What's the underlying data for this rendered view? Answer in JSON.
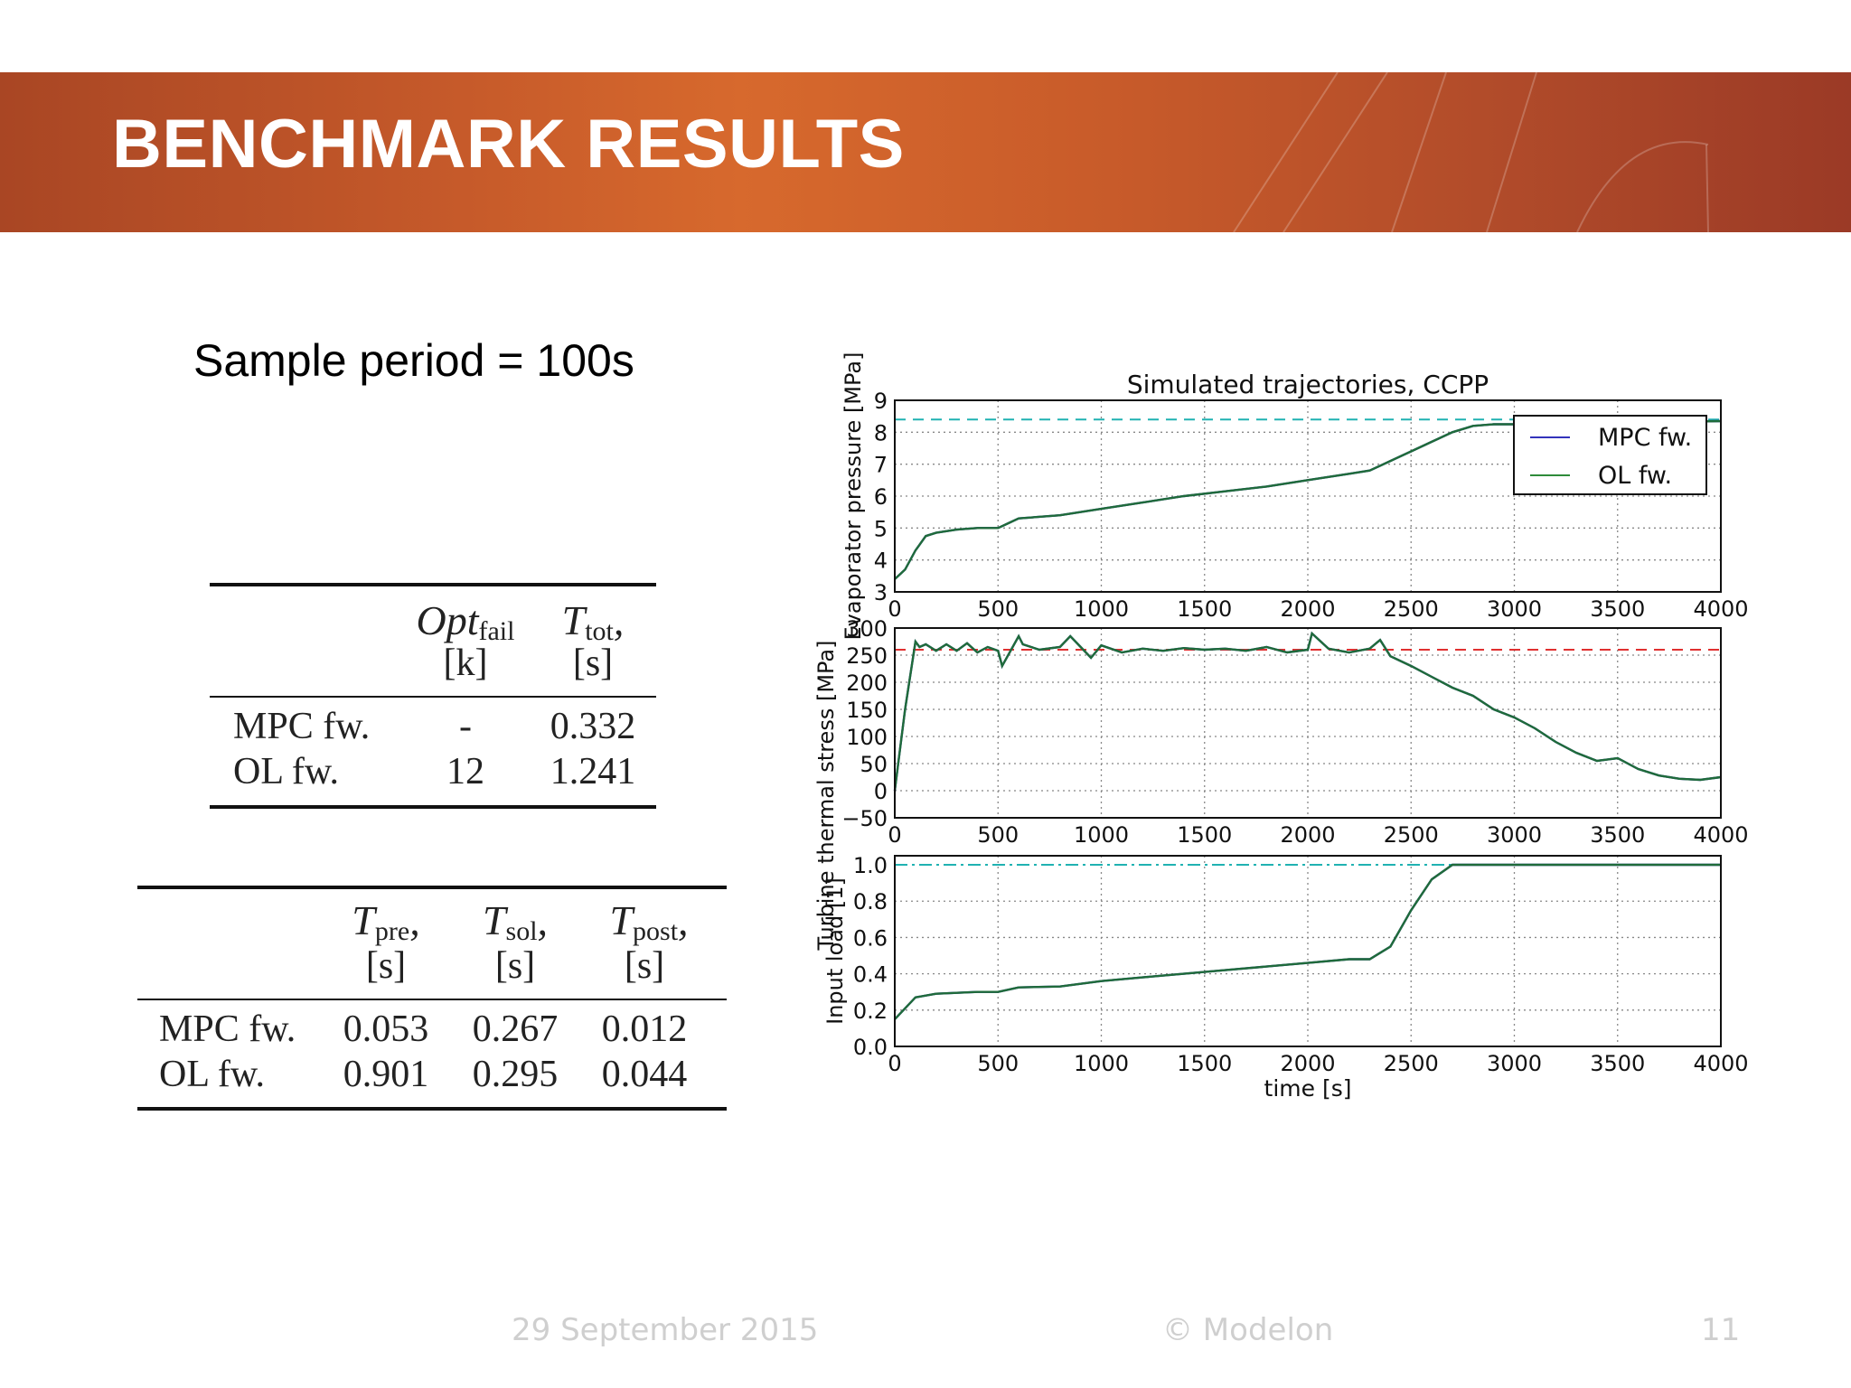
{
  "slide": {
    "title": "BENCHMARK RESULTS",
    "subtitle": "Sample period = 100s"
  },
  "table1": {
    "headers": [
      {
        "main": "Opt",
        "sub": "fail",
        "unit": "[k]"
      },
      {
        "main": "T",
        "sub": "tot",
        "unit": "[s]"
      }
    ],
    "rows": [
      {
        "label": "MPC fw.",
        "values": [
          "-",
          "0.332"
        ]
      },
      {
        "label": "OL fw.",
        "values": [
          "12",
          "1.241"
        ]
      }
    ]
  },
  "table2": {
    "headers": [
      {
        "main": "T",
        "sub": "pre",
        "unit": "[s]"
      },
      {
        "main": "T",
        "sub": "sol",
        "unit": "[s]"
      },
      {
        "main": "T",
        "sub": "post",
        "unit": "[s]"
      }
    ],
    "rows": [
      {
        "label": "MPC fw.",
        "values": [
          "0.053",
          "0.267",
          "0.012"
        ]
      },
      {
        "label": "OL fw.",
        "values": [
          "0.901",
          "0.295",
          "0.044"
        ]
      }
    ]
  },
  "footer": {
    "date": "29 September 2015",
    "copyright": "© Modelon",
    "page": "11"
  },
  "chart_data": {
    "type": "line",
    "title": "Simulated trajectories, CCPP",
    "xlabel": "time [s]",
    "xlim": [
      0,
      4000
    ],
    "xticks": [
      "0",
      "500",
      "1000",
      "1500",
      "2000",
      "2500",
      "3000",
      "3500",
      "4000"
    ],
    "legend": {
      "placement": "top-right",
      "entries": [
        {
          "name": "MPC fw.",
          "color": "#3333bb"
        },
        {
          "name": "OL fw.",
          "color": "#2e8b3a"
        }
      ]
    },
    "line_color": "#1f6b3a",
    "grid": true,
    "subplots": [
      {
        "ylabel": "Evaporator pressure [MPa]",
        "ylim": [
          3,
          9
        ],
        "yticks": [
          "3",
          "4",
          "5",
          "6",
          "7",
          "8",
          "9"
        ],
        "reference": {
          "value": 8.4,
          "color": "#20b2b2",
          "style": "dashed"
        },
        "series": [
          {
            "name": "MPC fw.",
            "x": [
              0,
              50,
              100,
              150,
              200,
              300,
              400,
              500,
              550,
              600,
              800,
              1000,
              1200,
              1400,
              1600,
              1800,
              2000,
              2100,
              2200,
              2300,
              2400,
              2500,
              2600,
              2700,
              2800,
              2900,
              3000,
              3500,
              4000
            ],
            "y": [
              3.4,
              3.7,
              4.3,
              4.75,
              4.85,
              4.95,
              5.0,
              5.0,
              5.15,
              5.3,
              5.4,
              5.6,
              5.8,
              6.0,
              6.15,
              6.3,
              6.5,
              6.6,
              6.7,
              6.8,
              7.1,
              7.4,
              7.7,
              8.0,
              8.2,
              8.25,
              8.25,
              8.3,
              8.35
            ]
          },
          {
            "name": "OL fw.",
            "x": [
              0,
              50,
              100,
              150,
              200,
              300,
              400,
              500,
              550,
              600,
              800,
              1000,
              1200,
              1400,
              1600,
              1800,
              2000,
              2100,
              2200,
              2300,
              2400,
              2500,
              2600,
              2700,
              2800,
              2900,
              3000,
              3500,
              4000
            ],
            "y": [
              3.4,
              3.7,
              4.3,
              4.75,
              4.85,
              4.95,
              5.0,
              5.0,
              5.15,
              5.3,
              5.4,
              5.6,
              5.8,
              6.0,
              6.15,
              6.3,
              6.5,
              6.6,
              6.7,
              6.8,
              7.1,
              7.4,
              7.7,
              8.0,
              8.2,
              8.25,
              8.25,
              8.3,
              8.35
            ]
          }
        ]
      },
      {
        "ylabel": "Turbine thermal stress [MPa]",
        "ylim": [
          -50,
          300
        ],
        "yticks": [
          "−50",
          "0",
          "50",
          "100",
          "150",
          "200",
          "250",
          "300"
        ],
        "reference": {
          "value": 260,
          "color": "#e03030",
          "style": "dashed"
        },
        "series": [
          {
            "name": "MPC fw.",
            "x": [
              0,
              50,
              100,
              120,
              150,
              200,
              250,
              300,
              350,
              400,
              450,
              500,
              520,
              600,
              620,
              700,
              800,
              850,
              900,
              950,
              1000,
              1100,
              1200,
              1300,
              1400,
              1500,
              1600,
              1700,
              1800,
              1900,
              2000,
              2020,
              2100,
              2200,
              2300,
              2350,
              2400,
              2500,
              2600,
              2700,
              2800,
              2900,
              3000,
              3100,
              3200,
              3300,
              3400,
              3500,
              3600,
              3700,
              3800,
              3900,
              4000
            ],
            "y": [
              0,
              150,
              275,
              265,
              270,
              258,
              270,
              258,
              272,
              255,
              265,
              258,
              230,
              285,
              270,
              260,
              265,
              285,
              265,
              245,
              268,
              255,
              262,
              258,
              263,
              260,
              262,
              258,
              265,
              255,
              260,
              290,
              262,
              255,
              262,
              278,
              248,
              230,
              210,
              190,
              175,
              150,
              135,
              115,
              90,
              70,
              55,
              60,
              40,
              28,
              22,
              20,
              25
            ]
          },
          {
            "name": "OL fw.",
            "x": [
              0,
              50,
              100,
              120,
              150,
              200,
              250,
              300,
              350,
              400,
              450,
              500,
              520,
              600,
              620,
              700,
              800,
              850,
              900,
              950,
              1000,
              1100,
              1200,
              1300,
              1400,
              1500,
              1600,
              1700,
              1800,
              1900,
              2000,
              2020,
              2100,
              2200,
              2300,
              2350,
              2400,
              2500,
              2600,
              2700,
              2800,
              2900,
              3000,
              3100,
              3200,
              3300,
              3400,
              3500,
              3600,
              3700,
              3800,
              3900,
              4000
            ],
            "y": [
              0,
              150,
              275,
              265,
              270,
              258,
              270,
              258,
              272,
              255,
              265,
              258,
              230,
              285,
              270,
              260,
              265,
              285,
              265,
              245,
              268,
              255,
              262,
              258,
              263,
              260,
              262,
              258,
              265,
              255,
              260,
              290,
              262,
              255,
              262,
              278,
              248,
              230,
              210,
              190,
              175,
              150,
              135,
              115,
              90,
              70,
              55,
              60,
              40,
              28,
              22,
              20,
              25
            ]
          }
        ]
      },
      {
        "ylabel": "Input load [1]",
        "ylim": [
          0.0,
          1.05
        ],
        "yticks": [
          "0.0",
          "0.2",
          "0.4",
          "0.6",
          "0.8",
          "1.0"
        ],
        "reference": {
          "value": 1.0,
          "color": "#20b2b2",
          "style": "dashdot"
        },
        "series": [
          {
            "name": "MPC fw.",
            "x": [
              0,
              100,
              200,
              300,
              400,
              500,
              600,
              800,
              1000,
              1200,
              1400,
              1600,
              1800,
              2000,
              2200,
              2300,
              2400,
              2500,
              2600,
              2700,
              2800,
              3000,
              3500,
              4000
            ],
            "y": [
              0.15,
              0.27,
              0.29,
              0.295,
              0.3,
              0.3,
              0.325,
              0.33,
              0.36,
              0.38,
              0.4,
              0.42,
              0.44,
              0.46,
              0.48,
              0.48,
              0.55,
              0.75,
              0.92,
              1.0,
              1.0,
              1.0,
              1.0,
              1.0
            ]
          },
          {
            "name": "OL fw.",
            "x": [
              0,
              100,
              200,
              300,
              400,
              500,
              600,
              800,
              1000,
              1200,
              1400,
              1600,
              1800,
              2000,
              2200,
              2300,
              2400,
              2500,
              2600,
              2700,
              2800,
              3000,
              3500,
              4000
            ],
            "y": [
              0.15,
              0.27,
              0.29,
              0.295,
              0.3,
              0.3,
              0.325,
              0.33,
              0.36,
              0.38,
              0.4,
              0.42,
              0.44,
              0.46,
              0.48,
              0.48,
              0.55,
              0.75,
              0.92,
              1.0,
              1.0,
              1.0,
              1.0,
              1.0
            ]
          }
        ]
      }
    ]
  }
}
